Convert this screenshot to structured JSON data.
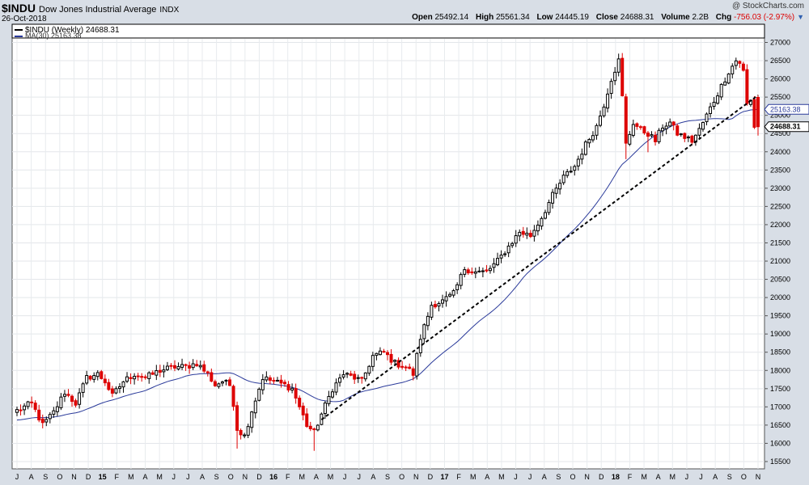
{
  "header": {
    "symbol": "$INDU",
    "name": "Dow Jones Industrial Average",
    "exchange": "INDX",
    "date": "26-Oct-2018",
    "brand": "@ StockCharts.com"
  },
  "quote": {
    "open_label": "Open",
    "open": "25492.14",
    "high_label": "High",
    "high": "25561.34",
    "low_label": "Low",
    "low": "24445.19",
    "close_label": "Close",
    "close": "24688.31",
    "volume_label": "Volume",
    "volume": "2.2B",
    "chg_label": "Chg",
    "chg": "-756.03 (-2.97%)",
    "dropdown_icon": "triangle-down-icon"
  },
  "legend": {
    "main": "$INDU (Weekly) 24688.31",
    "ma": "MA(30) 25163.38"
  },
  "colors": {
    "up": "#000000",
    "down": "#dd0000",
    "ma": "#2a3a9a",
    "background": "#ffffff",
    "frame": "#d8dee6"
  },
  "chart_data": {
    "type": "candlestick",
    "interval": "Weekly",
    "ylim": [
      15300,
      27100
    ],
    "y_ticks": [
      15500,
      16000,
      16500,
      17000,
      17500,
      18000,
      18500,
      19000,
      19500,
      20000,
      20500,
      21000,
      21500,
      22000,
      22500,
      23000,
      23500,
      24000,
      24500,
      25000,
      25500,
      26000,
      26500,
      27000
    ],
    "x_labels": [
      "J",
      "A",
      "S",
      "O",
      "N",
      "D",
      "15",
      "F",
      "M",
      "A",
      "M",
      "J",
      "J",
      "A",
      "S",
      "O",
      "N",
      "D",
      "16",
      "F",
      "M",
      "A",
      "M",
      "J",
      "J",
      "A",
      "S",
      "O",
      "N",
      "D",
      "17",
      "F",
      "M",
      "A",
      "M",
      "J",
      "J",
      "A",
      "S",
      "O",
      "N",
      "D",
      "18",
      "F",
      "M",
      "A",
      "M",
      "J",
      "J",
      "A",
      "S",
      "O",
      "N"
    ],
    "price_labels": [
      "25163.38",
      "24688.31"
    ],
    "price_anchors": [
      {
        "idx": 0,
        "v": 16900
      },
      {
        "idx": 4,
        "v": 17100
      },
      {
        "idx": 7,
        "v": 16500
      },
      {
        "idx": 10,
        "v": 16850
      },
      {
        "idx": 13,
        "v": 17400
      },
      {
        "idx": 16,
        "v": 17100
      },
      {
        "idx": 19,
        "v": 17800
      },
      {
        "idx": 22,
        "v": 17900
      },
      {
        "idx": 24,
        "v": 17700
      },
      {
        "idx": 26,
        "v": 17300
      },
      {
        "idx": 29,
        "v": 17700
      },
      {
        "idx": 32,
        "v": 17900
      },
      {
        "idx": 35,
        "v": 17800
      },
      {
        "idx": 39,
        "v": 18000
      },
      {
        "idx": 43,
        "v": 18100
      },
      {
        "idx": 46,
        "v": 18100
      },
      {
        "idx": 49,
        "v": 18200
      },
      {
        "idx": 52,
        "v": 17900
      },
      {
        "idx": 54,
        "v": 17600
      },
      {
        "idx": 56,
        "v": 17700
      },
      {
        "idx": 58,
        "v": 17600
      },
      {
        "idx": 59,
        "v": 17100
      },
      {
        "idx": 60,
        "v": 16400
      },
      {
        "idx": 62,
        "v": 16200
      },
      {
        "idx": 64,
        "v": 16900
      },
      {
        "idx": 67,
        "v": 17800
      },
      {
        "idx": 70,
        "v": 17700
      },
      {
        "idx": 73,
        "v": 17600
      },
      {
        "idx": 75,
        "v": 17500
      },
      {
        "idx": 77,
        "v": 17000
      },
      {
        "idx": 79,
        "v": 16500
      },
      {
        "idx": 81,
        "v": 16300
      },
      {
        "idx": 83,
        "v": 16800
      },
      {
        "idx": 86,
        "v": 17500
      },
      {
        "idx": 89,
        "v": 17900
      },
      {
        "idx": 92,
        "v": 17800
      },
      {
        "idx": 94,
        "v": 17700
      },
      {
        "idx": 97,
        "v": 18400
      },
      {
        "idx": 100,
        "v": 18500
      },
      {
        "idx": 103,
        "v": 18200
      },
      {
        "idx": 106,
        "v": 18100
      },
      {
        "idx": 108,
        "v": 17900
      },
      {
        "idx": 110,
        "v": 18900
      },
      {
        "idx": 113,
        "v": 19800
      },
      {
        "idx": 116,
        "v": 19900
      },
      {
        "idx": 119,
        "v": 20100
      },
      {
        "idx": 122,
        "v": 20800
      },
      {
        "idx": 125,
        "v": 20700
      },
      {
        "idx": 128,
        "v": 20700
      },
      {
        "idx": 131,
        "v": 21000
      },
      {
        "idx": 134,
        "v": 21400
      },
      {
        "idx": 137,
        "v": 21800
      },
      {
        "idx": 140,
        "v": 21700
      },
      {
        "idx": 143,
        "v": 22200
      },
      {
        "idx": 146,
        "v": 22800
      },
      {
        "idx": 149,
        "v": 23300
      },
      {
        "idx": 152,
        "v": 23600
      },
      {
        "idx": 155,
        "v": 24200
      },
      {
        "idx": 158,
        "v": 24700
      },
      {
        "idx": 160,
        "v": 25300
      },
      {
        "idx": 162,
        "v": 26000
      },
      {
        "idx": 164,
        "v": 26500
      },
      {
        "idx": 165,
        "v": 25500
      },
      {
        "idx": 166,
        "v": 24200
      },
      {
        "idx": 168,
        "v": 24800
      },
      {
        "idx": 170,
        "v": 24600
      },
      {
        "idx": 172,
        "v": 24500
      },
      {
        "idx": 174,
        "v": 24300
      },
      {
        "idx": 176,
        "v": 24700
      },
      {
        "idx": 178,
        "v": 24800
      },
      {
        "idx": 180,
        "v": 24500
      },
      {
        "idx": 182,
        "v": 24400
      },
      {
        "idx": 184,
        "v": 24300
      },
      {
        "idx": 186,
        "v": 24600
      },
      {
        "idx": 188,
        "v": 25000
      },
      {
        "idx": 190,
        "v": 25400
      },
      {
        "idx": 192,
        "v": 25800
      },
      {
        "idx": 194,
        "v": 26200
      },
      {
        "idx": 196,
        "v": 26500
      },
      {
        "idx": 197,
        "v": 26450
      },
      {
        "idx": 198,
        "v": 26200
      },
      {
        "idx": 199,
        "v": 25300
      },
      {
        "idx": 200,
        "v": 25400
      },
      {
        "idx": 201,
        "v": 24700
      }
    ],
    "last_candle": {
      "open": 25492.14,
      "high": 25561.34,
      "low": 24445.19,
      "close": 24688.31
    },
    "ma_period": 30,
    "ma_last": 25163.38,
    "trendline": {
      "from": {
        "idx": 83,
        "v": 16650
      },
      "to": {
        "idx": 202,
        "v": 25550
      }
    },
    "grid": true,
    "legend_position": "top-left",
    "axis_position": "right"
  }
}
